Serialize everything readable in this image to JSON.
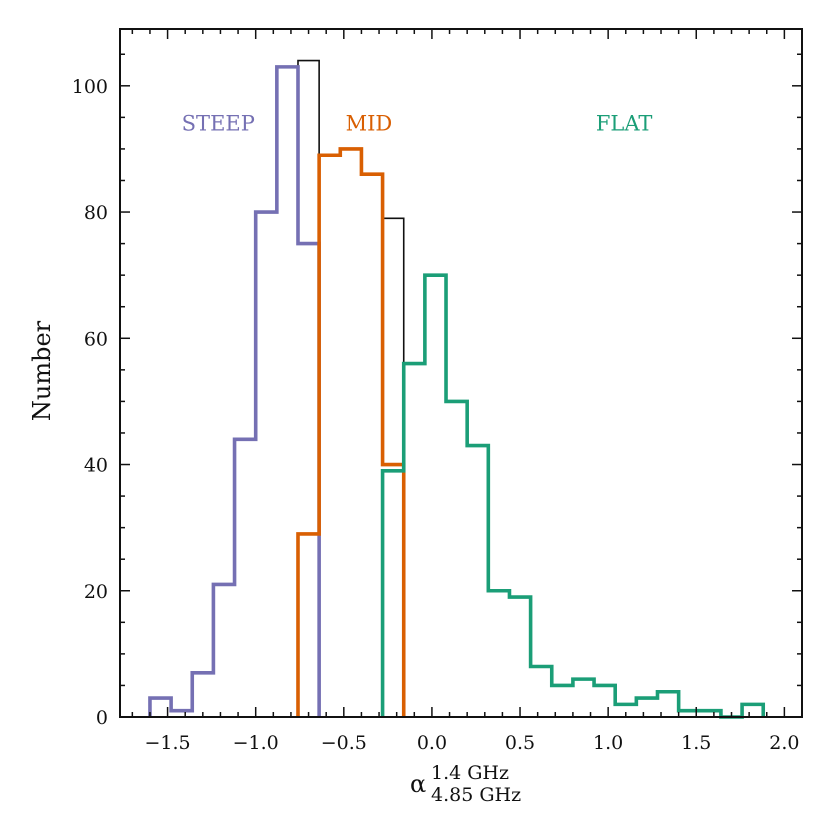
{
  "chart_data": {
    "type": "histogram",
    "title": "",
    "ylabel": "Number",
    "xlabel": {
      "base": "α",
      "superscript": "1.4 GHz",
      "subscript": "4.85 GHz"
    },
    "xlim": [
      -1.77,
      2.1
    ],
    "ylim": [
      0,
      109
    ],
    "bin_width": 0.12,
    "xticks": [
      -1.5,
      -1.0,
      -0.5,
      0.0,
      0.5,
      1.0,
      1.5,
      2.0
    ],
    "xtick_labels": [
      "−1.5",
      "−1.0",
      "−0.5",
      "0.0",
      "0.5",
      "1.0",
      "1.5",
      "2.0"
    ],
    "yticks": [
      0,
      20,
      40,
      60,
      80,
      100
    ],
    "ytick_labels": [
      "0",
      "20",
      "40",
      "60",
      "80",
      "100"
    ],
    "colors": {
      "all": "#111111",
      "steep": "#7570b3",
      "mid": "#d95f02",
      "flat": "#1b9e77"
    },
    "region_labels": [
      {
        "name": "steep",
        "text": "STEEP",
        "x": -1.42,
        "y": 94
      },
      {
        "name": "mid",
        "text": "MID",
        "x": -0.49,
        "y": 94
      },
      {
        "name": "flat",
        "text": "FLAT",
        "x": 0.93,
        "y": 94
      }
    ],
    "series": [
      {
        "name": "all",
        "edges": [
          -1.6,
          -1.48,
          -1.36,
          -1.24,
          -1.12,
          -1.0,
          -0.88,
          -0.76,
          -0.64,
          -0.52,
          -0.4,
          -0.28,
          -0.16,
          -0.04,
          0.08,
          0.2,
          0.32,
          0.44,
          0.56,
          0.68,
          0.8,
          0.92,
          1.04,
          1.16,
          1.28,
          1.4,
          1.52,
          1.64,
          1.76,
          1.88
        ],
        "values": [
          3,
          1,
          7,
          21,
          44,
          80,
          103,
          104,
          89,
          90,
          86,
          79,
          56,
          70,
          50,
          43,
          20,
          19,
          8,
          5,
          6,
          5,
          2,
          3,
          4,
          1,
          1,
          0,
          2
        ]
      },
      {
        "name": "steep",
        "edges": [
          -1.6,
          -1.48,
          -1.36,
          -1.24,
          -1.12,
          -1.0,
          -0.88,
          -0.76,
          -0.64
        ],
        "values": [
          3,
          1,
          7,
          21,
          44,
          80,
          103,
          75
        ]
      },
      {
        "name": "mid",
        "edges": [
          -0.76,
          -0.64,
          -0.52,
          -0.4,
          -0.28,
          -0.16
        ],
        "values": [
          29,
          89,
          90,
          86,
          40
        ]
      },
      {
        "name": "flat",
        "edges": [
          -0.28,
          -0.16,
          -0.04,
          0.08,
          0.2,
          0.32,
          0.44,
          0.56,
          0.68,
          0.8,
          0.92,
          1.04,
          1.16,
          1.28,
          1.4,
          1.52,
          1.64,
          1.76,
          1.88
        ],
        "values": [
          39,
          56,
          70,
          50,
          43,
          20,
          19,
          8,
          5,
          6,
          5,
          2,
          3,
          4,
          1,
          1,
          0,
          2
        ]
      }
    ]
  }
}
